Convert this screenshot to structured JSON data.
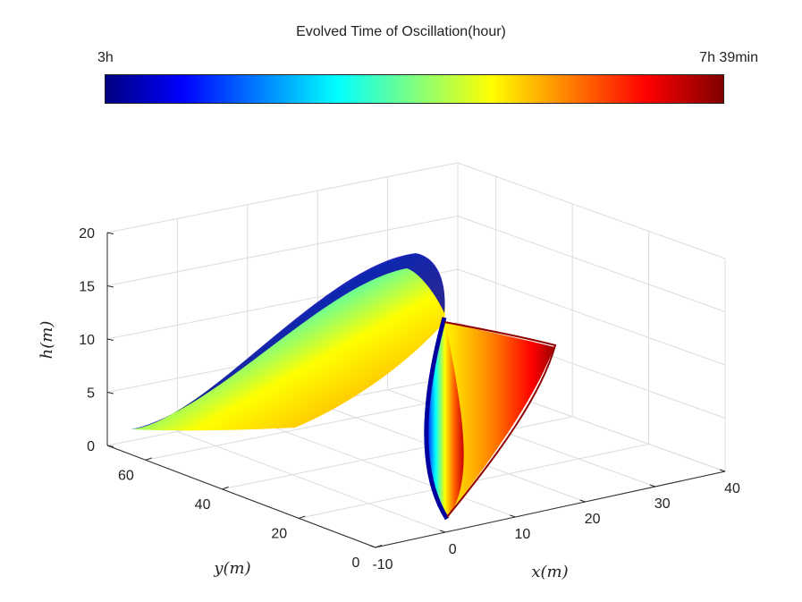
{
  "colorbar": {
    "title": "Evolved Time of Oscillation(hour)",
    "min_label": "3h",
    "max_label": "7h 39min",
    "colormap": [
      "#00007f",
      "#0000ff",
      "#00ffff",
      "#ffff00",
      "#ff0000",
      "#7f0000"
    ]
  },
  "chart_data": {
    "type": "surface",
    "xlabel": "x(m)",
    "ylabel": "y(m)",
    "zlabel": "h(m)",
    "xlim": [
      -10,
      40
    ],
    "ylim": [
      0,
      70
    ],
    "zlim": [
      0,
      20
    ],
    "xticks": [
      "-10",
      "0",
      "10",
      "20",
      "30",
      "40"
    ],
    "yticks": [
      "0",
      "20",
      "40",
      "60"
    ],
    "zticks": [
      "0",
      "5",
      "10",
      "15",
      "20"
    ],
    "grid": true,
    "curves": [
      {
        "name": "",
        "time_label": "3h",
        "color": "#00007f",
        "points": [
          {
            "x": -2,
            "y": 55,
            "h": 1
          },
          {
            "x": -2,
            "y": 50,
            "h": 1
          },
          {
            "x": 0,
            "y": 40,
            "h": 5
          },
          {
            "x": 2,
            "y": 30,
            "h": 11
          },
          {
            "x": 6,
            "y": 22,
            "h": 17
          },
          {
            "x": 10,
            "y": 18,
            "h": 16
          },
          {
            "x": 12,
            "y": 16,
            "h": 10
          },
          {
            "x": 10,
            "y": 12,
            "h": 2
          },
          {
            "x": 6,
            "y": 10,
            "h": 0
          }
        ]
      },
      {
        "name": "",
        "time_label": "7h 39min",
        "color": "#7f0000",
        "points": [
          {
            "x": 30,
            "y": 55,
            "h": 7
          },
          {
            "x": 28,
            "y": 45,
            "h": 4
          },
          {
            "x": 22,
            "y": 30,
            "h": 2
          },
          {
            "x": 14,
            "y": 18,
            "h": 0
          },
          {
            "x": 6,
            "y": 10,
            "h": 0
          }
        ]
      }
    ]
  }
}
